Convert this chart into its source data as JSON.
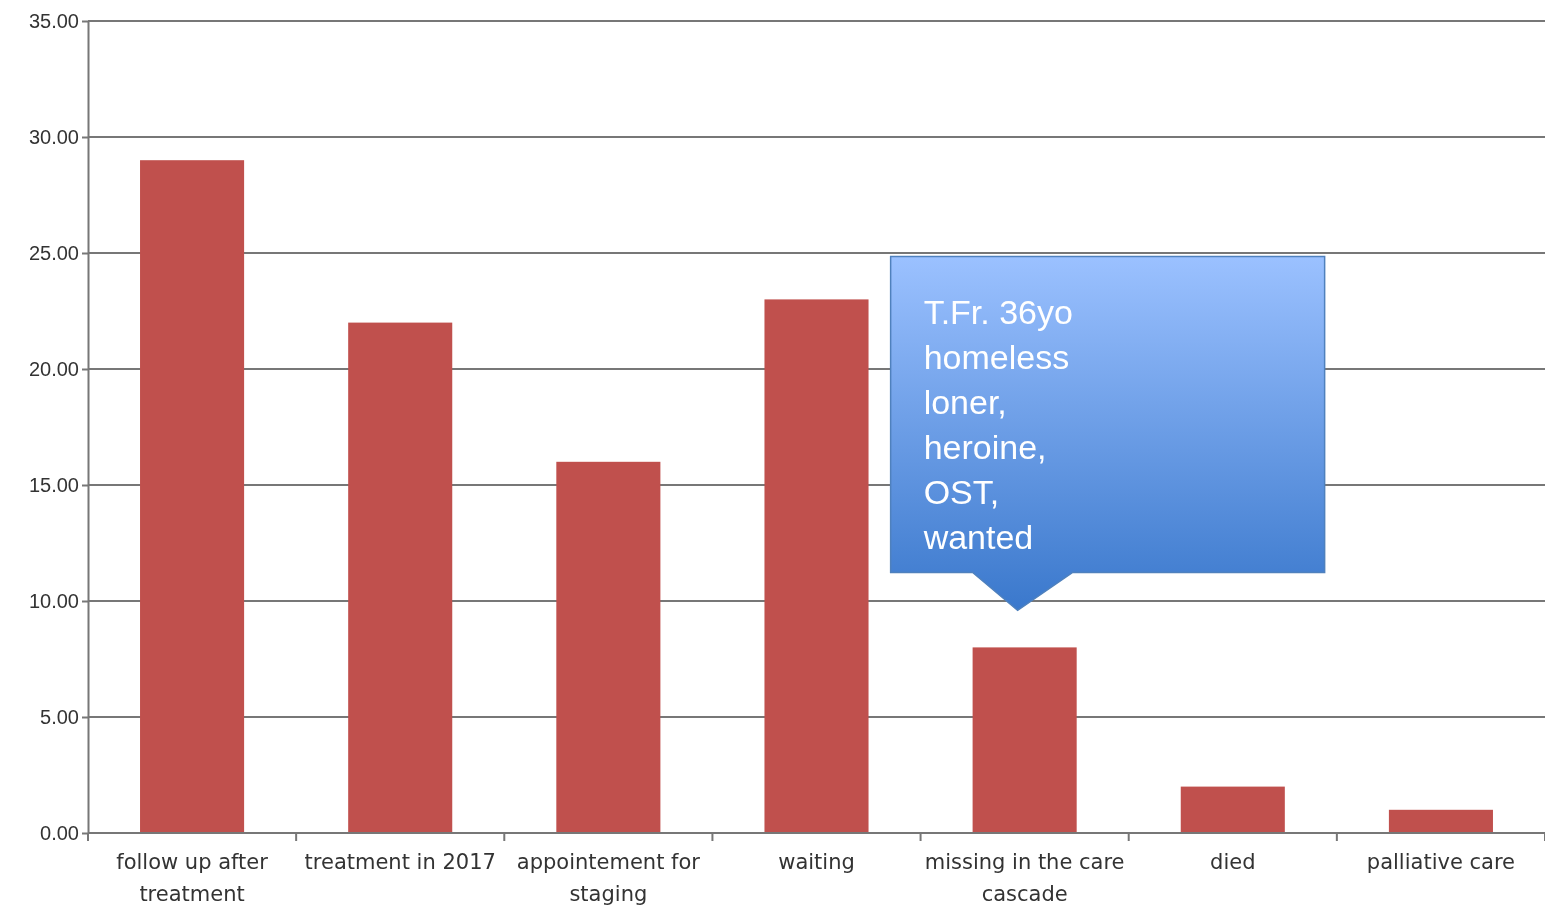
{
  "chart_data": {
    "type": "bar",
    "categories": [
      "follow up  after treatment",
      "treatment in 2017",
      "appointement for staging",
      "waiting",
      "missing in the care cascade",
      "died",
      "palliative care"
    ],
    "values": [
      29,
      22,
      16,
      23,
      8,
      2,
      1
    ],
    "color": "#c0504d",
    "ylim": [
      0,
      35
    ],
    "yticks": [
      {
        "value": 0,
        "label": "0.00"
      },
      {
        "value": 5,
        "label": "5.00"
      },
      {
        "value": 10,
        "label": "10.00"
      },
      {
        "value": 15,
        "label": "15.00"
      },
      {
        "value": 20,
        "label": "20.00"
      },
      {
        "value": 25,
        "label": "25.00"
      },
      {
        "value": 30,
        "label": "30.00"
      },
      {
        "value": 35,
        "label": "35.00"
      }
    ],
    "grid": "y",
    "annotations": [
      {
        "text": "T.Fr. 36yo homeless loner, heroine, OST, wanted",
        "x": "missing in the care cascade",
        "y": 8
      }
    ]
  }
}
